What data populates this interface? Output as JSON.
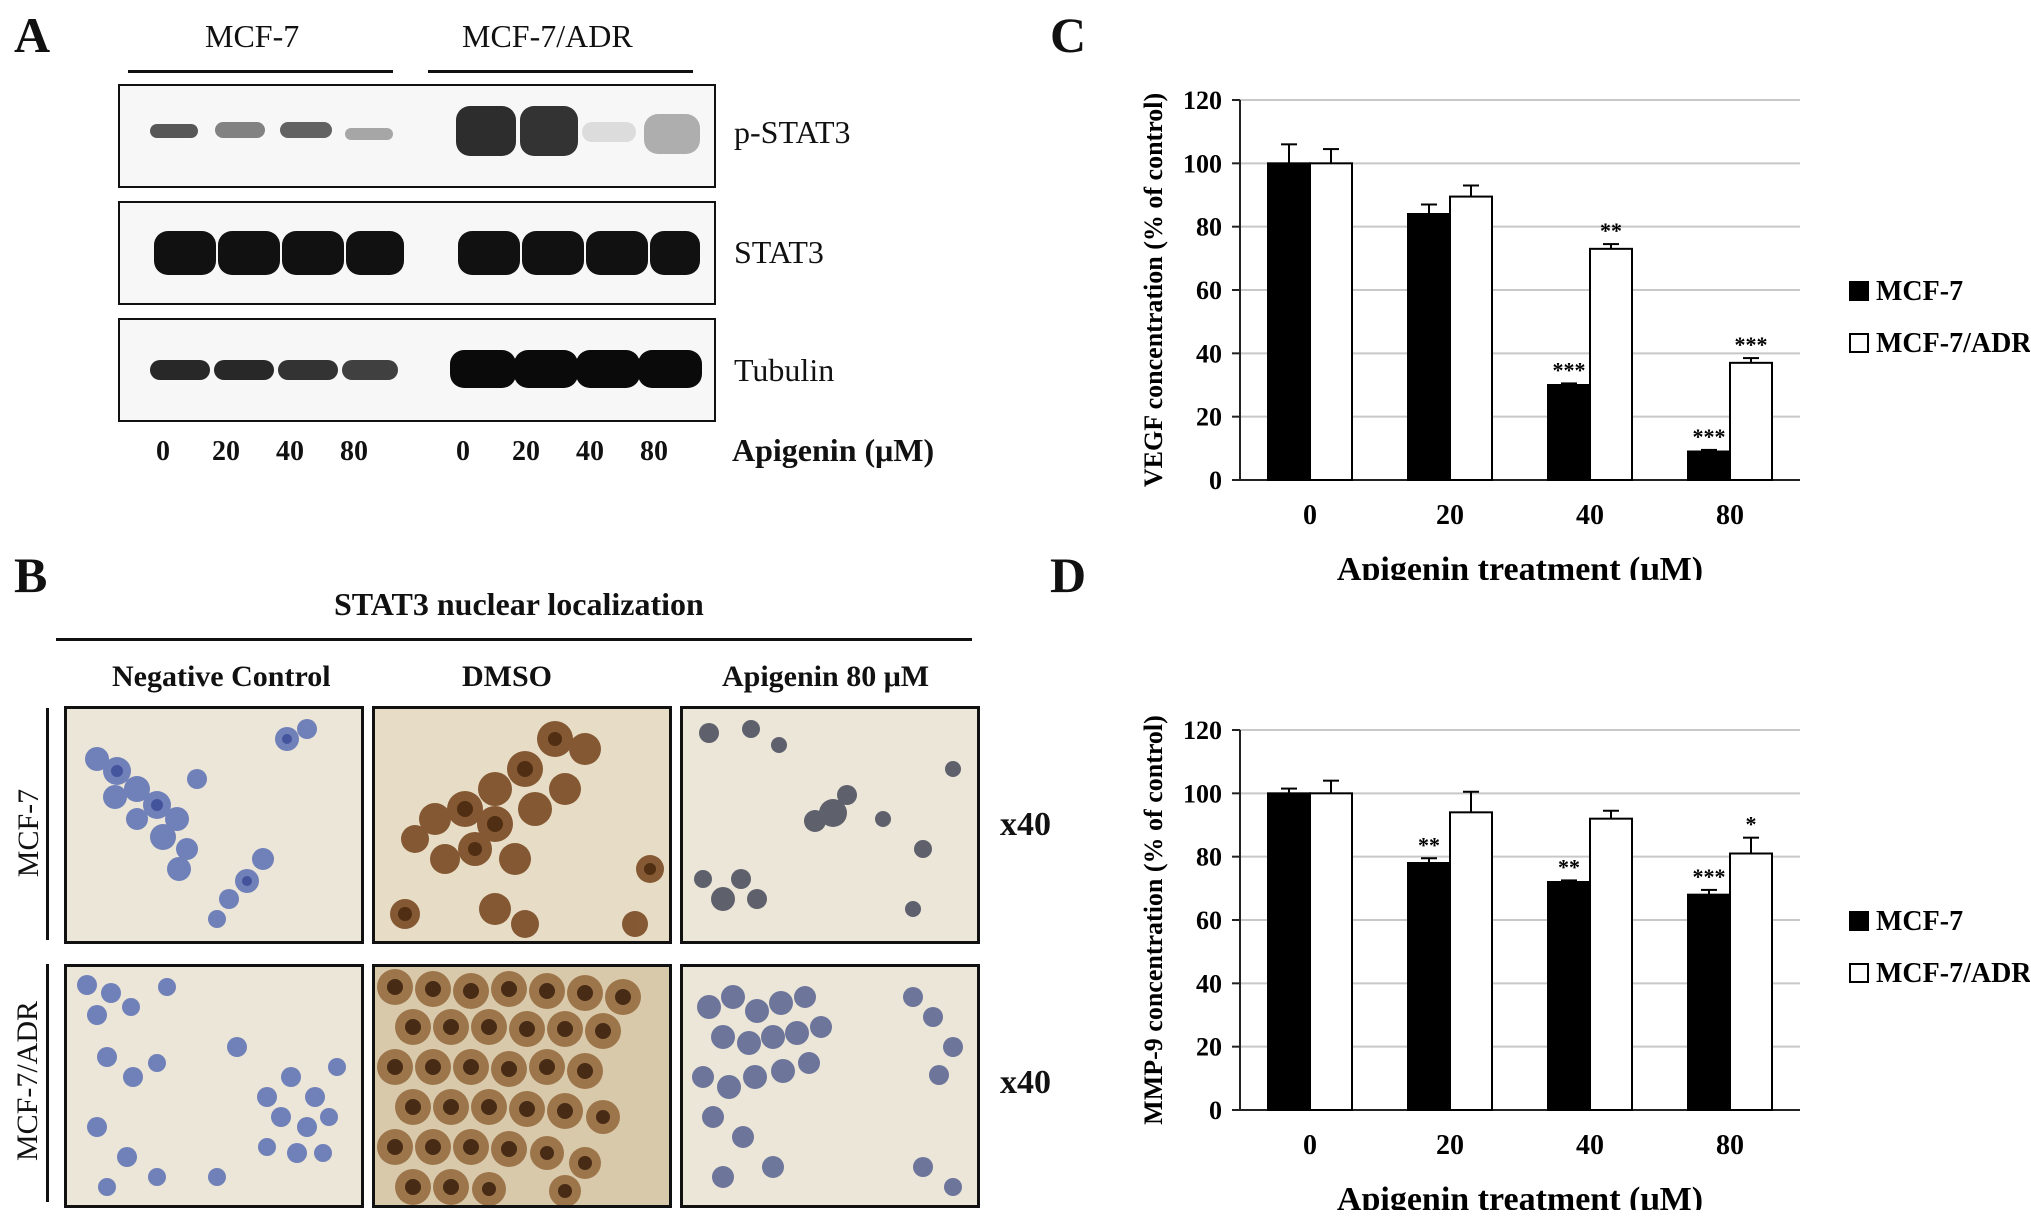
{
  "panels": {
    "a": {
      "letter": "A",
      "groups": [
        "MCF-7",
        "MCF-7/ADR"
      ],
      "rows": [
        "p-STAT3",
        "STAT3",
        "Tubulin"
      ],
      "lanes": [
        "0",
        "20",
        "40",
        "80",
        "0",
        "20",
        "40",
        "80"
      ],
      "treatment_label": "Apigenin (μM)"
    },
    "b": {
      "letter": "B",
      "title": "STAT3 nuclear localization",
      "columns": [
        "Negative Control",
        "DMSO",
        "Apigenin 80 μM"
      ],
      "rows": [
        "MCF-7",
        "MCF-7/ADR"
      ],
      "magnification": [
        "x40",
        "x40"
      ],
      "colors": {
        "hematoxylin": "#4b5fa8",
        "dab": "#6b3a16",
        "background": "#e9e3d3"
      }
    },
    "c": {
      "letter": "C"
    },
    "d": {
      "letter": "D"
    }
  },
  "chart_data": [
    {
      "type": "bar",
      "panel": "C",
      "categories": [
        "0",
        "20",
        "40",
        "80"
      ],
      "series": [
        {
          "name": "MCF-7",
          "color": "#000000",
          "values": [
            100,
            84,
            30,
            9
          ],
          "errors": [
            6,
            3,
            0.5,
            0.5
          ],
          "annotations": [
            "",
            "",
            "***",
            "***"
          ]
        },
        {
          "name": "MCF-7/ADR",
          "color": "#ffffff",
          "values": [
            100,
            89.5,
            73,
            37
          ],
          "errors": [
            4.5,
            3.5,
            1.5,
            1.5
          ],
          "annotations": [
            "",
            "",
            "**",
            "***"
          ]
        }
      ],
      "xlabel": "Apigenin treatment (μM)",
      "ylabel": "VEGF concentration (% of control)",
      "ylim": [
        0,
        120
      ],
      "yticks": [
        "0",
        "20",
        "40",
        "60",
        "80",
        "100",
        "120"
      ],
      "grid": true,
      "legend": "right"
    },
    {
      "type": "bar",
      "panel": "D",
      "categories": [
        "0",
        "20",
        "40",
        "80"
      ],
      "series": [
        {
          "name": "MCF-7",
          "color": "#000000",
          "values": [
            100,
            78,
            72,
            68
          ],
          "errors": [
            1.5,
            1.5,
            0.5,
            1.5
          ],
          "annotations": [
            "",
            "**",
            "**",
            "***"
          ]
        },
        {
          "name": "MCF-7/ADR",
          "color": "#ffffff",
          "values": [
            100,
            94,
            92,
            81
          ],
          "errors": [
            4,
            6.5,
            2.5,
            5
          ],
          "annotations": [
            "",
            "",
            "",
            "*"
          ]
        }
      ],
      "xlabel": "Apigenin treatment (μM)",
      "ylabel": "MMP-9 concentration (% of control)",
      "ylim": [
        0,
        120
      ],
      "yticks": [
        "0",
        "20",
        "40",
        "60",
        "80",
        "100",
        "120"
      ],
      "grid": true,
      "legend": "right"
    }
  ]
}
